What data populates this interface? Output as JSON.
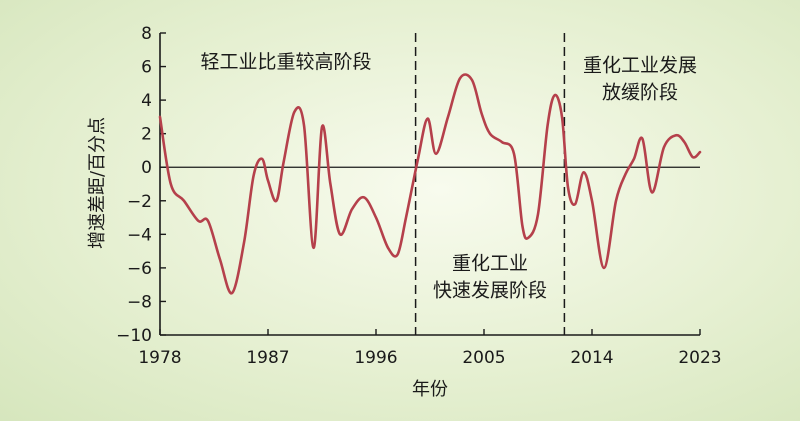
{
  "chart_data": {
    "type": "line",
    "title": "",
    "xlabel": "年份",
    "ylabel": "增速差距/百分点",
    "xlim": [
      1978,
      2023
    ],
    "ylim": [
      -10,
      8
    ],
    "x_ticks": [
      1978,
      1987,
      1996,
      2005,
      2014,
      2023
    ],
    "y_ticks": [
      -10,
      -8,
      -6,
      -4,
      -2,
      0,
      2,
      4,
      6,
      8
    ],
    "grid": false,
    "legend": "none",
    "line_color": "#b5404b",
    "dividers": [
      1999.3,
      2011.7
    ],
    "annotations": [
      {
        "lines": [
          "轻工业比重较高阶段"
        ],
        "x": 1988.5,
        "y": 5.9
      },
      {
        "lines": [
          "重化工业",
          "快速发展阶段"
        ],
        "x": 2005.5,
        "y": -6.1
      },
      {
        "lines": [
          "重化工业发展",
          "放缓阶段"
        ],
        "x": 2018.0,
        "y": 5.7
      }
    ],
    "series": [
      {
        "x": [
          1978.0,
          1978.9,
          1980.0,
          1981.2,
          1982.0,
          1983.0,
          1984.0,
          1985.0,
          1985.8,
          1986.5,
          1987.0,
          1987.7,
          1988.3,
          1989.2,
          1990.0,
          1990.8,
          1991.5,
          1992.2,
          1993.0,
          1994.0,
          1995.0,
          1996.0,
          1997.0,
          1997.8,
          1998.5,
          1999.5,
          2000.3,
          2001.0,
          2002.0,
          2003.0,
          2004.0,
          2004.8,
          2005.5,
          2006.5,
          2007.5,
          2008.2,
          2008.7,
          2009.5,
          2010.3,
          2010.9,
          2011.5,
          2012.0,
          2012.6,
          2013.3,
          2014.0,
          2015.0,
          2016.0,
          2016.8,
          2017.5,
          2018.2,
          2019.0,
          2020.0,
          2021.0,
          2021.7,
          2022.4,
          2023.0
        ],
        "y": [
          3.0,
          -1.0,
          -2.0,
          -3.2,
          -3.2,
          -5.5,
          -7.5,
          -4.5,
          -0.5,
          0.5,
          -0.8,
          -2.0,
          0.3,
          3.3,
          2.5,
          -4.8,
          2.4,
          -1.0,
          -4.0,
          -2.5,
          -1.8,
          -3.0,
          -4.8,
          -5.2,
          -3.0,
          0.5,
          2.9,
          0.8,
          3.0,
          5.3,
          5.2,
          3.2,
          2.0,
          1.5,
          0.8,
          -3.5,
          -4.2,
          -2.8,
          2.5,
          4.3,
          3.0,
          -1.2,
          -2.2,
          -0.3,
          -2.0,
          -6.0,
          -2.0,
          -0.4,
          0.5,
          1.7,
          -1.5,
          1.2,
          1.9,
          1.5,
          0.6,
          0.9
        ]
      }
    ]
  }
}
